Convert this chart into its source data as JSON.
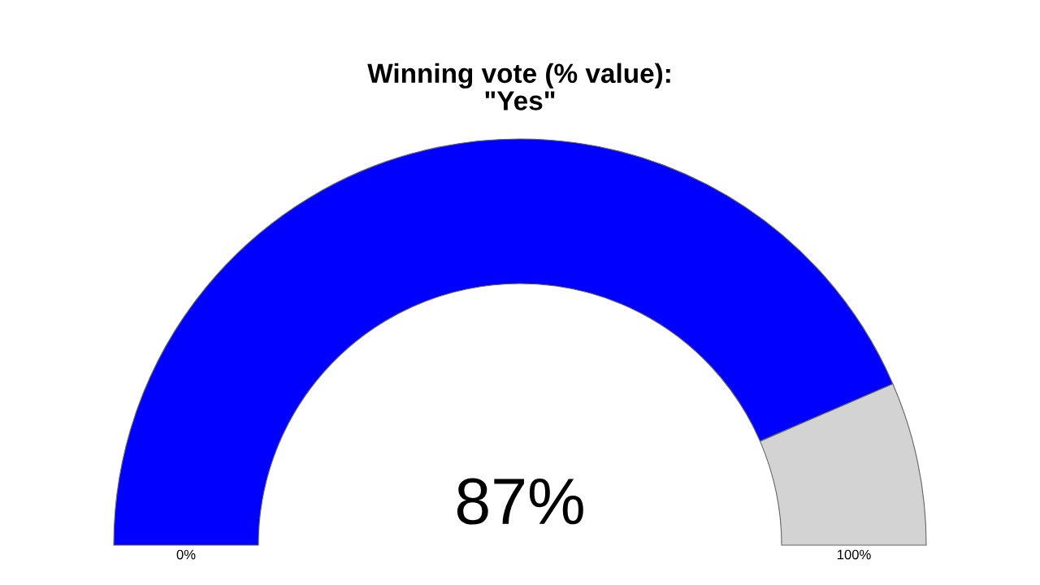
{
  "chart_data": {
    "type": "donut",
    "title": "Winning vote (% value):\n\"Yes\"",
    "categories": [
      null,
      null
    ],
    "values": [
      87,
      13
    ],
    "colors": [
      "#0000ff",
      "#d3d3d3"
    ],
    "value_labels": [
      "87%",
      null
    ],
    "annotations": [
      "0%",
      "100%"
    ]
  }
}
